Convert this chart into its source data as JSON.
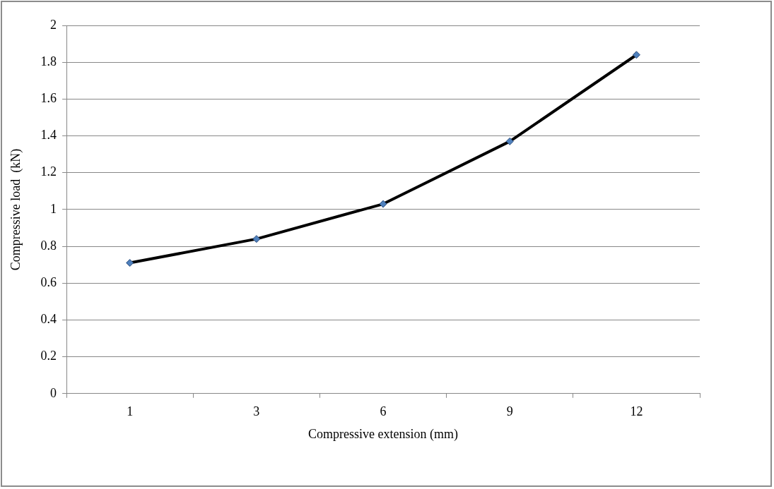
{
  "chart_data": {
    "type": "line",
    "xlabel": "Compressive extension (mm)",
    "ylabel": "Compressive load  (kN)",
    "categories": [
      "1",
      "3",
      "6",
      "9",
      "12"
    ],
    "series": [
      {
        "color": "#000000",
        "values": [
          0.71,
          0.84,
          1.03,
          1.37,
          1.84
        ]
      }
    ],
    "ylim": [
      0,
      2
    ],
    "yticks": [
      0,
      0.2,
      0.4,
      0.6,
      0.8,
      1,
      1.2,
      1.4,
      1.6,
      1.8,
      2
    ],
    "grid": "y",
    "legend": false,
    "marker": "diamond",
    "line_style": "solid"
  }
}
